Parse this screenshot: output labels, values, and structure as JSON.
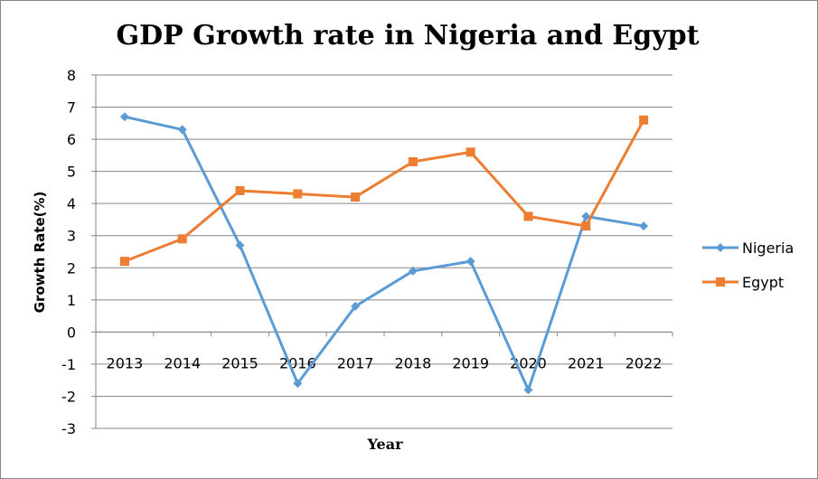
{
  "chart_data": {
    "type": "line",
    "title": "GDP Growth  rate in Nigeria and Egypt",
    "xlabel": "Year",
    "ylabel": "Growth Rate(%)",
    "categories": [
      "2013",
      "2014",
      "2015",
      "2016",
      "2017",
      "2018",
      "2019",
      "2020",
      "2021",
      "2022"
    ],
    "ylim": [
      -3,
      8
    ],
    "yticks": [
      "8",
      "7",
      "6",
      "5",
      "4",
      "3",
      "2",
      "1",
      "0",
      "-1",
      "-2",
      "-3"
    ],
    "grid": true,
    "legend_position": "right",
    "series": [
      {
        "name": "Nigeria",
        "color": "#5b9bd5",
        "marker": "diamond",
        "values": [
          6.7,
          6.3,
          2.7,
          -1.6,
          0.8,
          1.9,
          2.2,
          -1.8,
          3.6,
          3.3
        ]
      },
      {
        "name": "Egypt",
        "color": "#ed7d31",
        "marker": "square",
        "values": [
          2.2,
          2.9,
          4.4,
          4.3,
          4.2,
          5.3,
          5.6,
          3.6,
          3.3,
          6.6
        ]
      }
    ]
  }
}
